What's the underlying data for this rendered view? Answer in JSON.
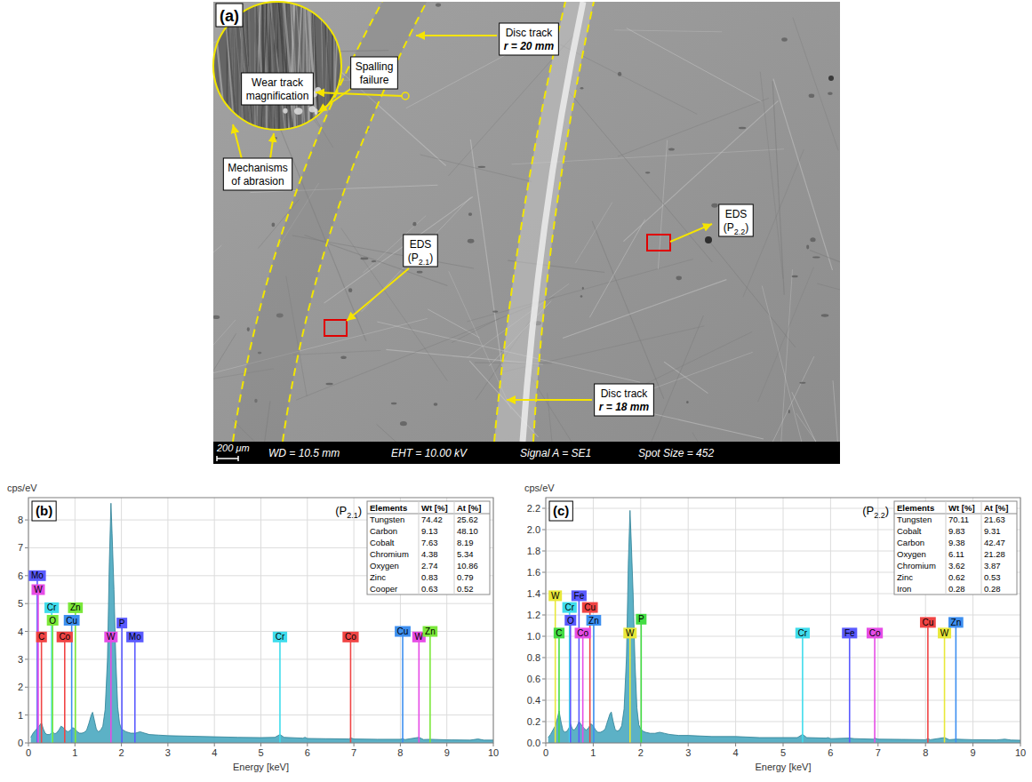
{
  "panel_a": {
    "letter": "(a)",
    "callouts": [
      {
        "lines": [
          [
            {
              "text": "Wear track"
            }
          ],
          [
            {
              "text": "magnification"
            }
          ]
        ]
      },
      {
        "lines": [
          [
            {
              "text": "Spalling"
            }
          ],
          [
            {
              "text": "failure"
            }
          ]
        ]
      },
      {
        "lines": [
          [
            {
              "text": "Mechanisms"
            }
          ],
          [
            {
              "text": "of abrasion"
            }
          ]
        ]
      },
      {
        "lines": [
          [
            {
              "text": "Disc track"
            }
          ],
          [
            {
              "text": "r = 20 mm",
              "emphasis": true
            }
          ]
        ]
      },
      {
        "lines": [
          [
            {
              "text": "EDS"
            }
          ],
          [
            {
              "text": "(P"
            },
            {
              "text": "2.1",
              "sub": true
            },
            {
              "text": ")"
            }
          ]
        ]
      },
      {
        "lines": [
          [
            {
              "text": "EDS"
            }
          ],
          [
            {
              "text": "(P"
            },
            {
              "text": "2.2",
              "sub": true
            },
            {
              "text": ")"
            }
          ]
        ]
      },
      {
        "lines": [
          [
            {
              "text": "Disc track"
            }
          ],
          [
            {
              "text": "r = 18 mm",
              "emphasis": true
            }
          ]
        ]
      }
    ],
    "scale_bar": "200 μm",
    "info": [
      "WD = 10.5 mm",
      "EHT = 10.00 kV",
      "Signal A = SE1",
      "Spot Size = 452"
    ]
  },
  "chart_data": [
    {
      "type": "area",
      "panel": "(b)",
      "y_label": "cps/eV",
      "x_label": "Energy [keV]",
      "point_label": [
        {
          "text": "(P"
        },
        {
          "text": "2.1",
          "sub": true
        },
        {
          "text": ")"
        }
      ],
      "color": "#4aa8c0",
      "grid": true,
      "xlim": [
        0,
        10
      ],
      "xticks": [
        0,
        1,
        2,
        3,
        4,
        5,
        6,
        7,
        8,
        9,
        10
      ],
      "ylim": [
        0,
        8.8
      ],
      "yticks": [
        0,
        1,
        2,
        3,
        4,
        5,
        6,
        7,
        8
      ],
      "x": [
        0.05,
        0.1,
        0.15,
        0.2,
        0.25,
        0.28,
        0.32,
        0.36,
        0.4,
        0.45,
        0.5,
        0.52,
        0.56,
        0.6,
        0.65,
        0.7,
        0.75,
        0.8,
        0.85,
        0.9,
        0.95,
        1.0,
        1.05,
        1.1,
        1.15,
        1.2,
        1.25,
        1.3,
        1.35,
        1.38,
        1.42,
        1.46,
        1.5,
        1.55,
        1.6,
        1.65,
        1.7,
        1.74,
        1.775,
        1.8,
        1.84,
        1.88,
        1.92,
        1.96,
        2.0,
        2.05,
        2.1,
        2.2,
        2.3,
        2.4,
        2.5,
        2.6,
        2.8,
        3.0,
        3.5,
        4.0,
        4.5,
        5.0,
        5.3,
        5.41,
        5.5,
        5.9,
        5.95,
        6.0,
        6.4,
        6.5,
        6.9,
        6.93,
        7.0,
        7.5,
        8.0,
        8.05,
        8.1,
        8.4,
        8.5,
        8.64,
        9.0,
        9.5,
        9.67,
        9.8,
        10.0
      ],
      "values": [
        0.2,
        0.35,
        0.45,
        0.55,
        0.65,
        0.72,
        0.5,
        0.35,
        0.3,
        0.3,
        0.35,
        0.4,
        0.33,
        0.35,
        0.45,
        0.6,
        0.55,
        0.45,
        0.4,
        0.45,
        0.55,
        0.5,
        0.4,
        0.35,
        0.35,
        0.38,
        0.45,
        0.7,
        1.0,
        1.1,
        0.8,
        0.5,
        0.4,
        0.45,
        0.6,
        1.2,
        3.0,
        6.5,
        8.6,
        7.5,
        5.5,
        3.0,
        1.3,
        0.7,
        0.5,
        0.45,
        0.4,
        0.35,
        0.35,
        0.4,
        0.35,
        0.3,
        0.28,
        0.26,
        0.24,
        0.22,
        0.2,
        0.19,
        0.2,
        0.3,
        0.2,
        0.17,
        0.2,
        0.16,
        0.15,
        0.15,
        0.14,
        0.18,
        0.14,
        0.13,
        0.13,
        0.15,
        0.12,
        0.2,
        0.12,
        0.13,
        0.11,
        0.1,
        0.14,
        0.1,
        0.1
      ],
      "element_lines": [
        {
          "label": "Mo",
          "color": "#5a5aff",
          "energy": 0.19,
          "height": 6.0
        },
        {
          "label": "W",
          "color": "#e64ce6",
          "energy": 0.21,
          "height": 5.5
        },
        {
          "label": "Cr",
          "color": "#3fdcec",
          "energy": 0.5,
          "height": 4.85
        },
        {
          "label": "Zn",
          "color": "#7be83a",
          "energy": 1.01,
          "height": 4.85
        },
        {
          "label": "O",
          "color": "#7be83a",
          "energy": 0.52,
          "height": 4.4
        },
        {
          "label": "Cu",
          "color": "#3d8ff0",
          "energy": 0.93,
          "height": 4.4
        },
        {
          "label": "C",
          "color": "#f04444",
          "energy": 0.28,
          "height": 3.8
        },
        {
          "label": "Co",
          "color": "#f04444",
          "energy": 0.78,
          "height": 3.8
        },
        {
          "label": "W",
          "color": "#e64ce6",
          "energy": 1.775,
          "height": 3.8
        },
        {
          "label": "P",
          "color": "#5a5aff",
          "energy": 2.01,
          "height": 4.3
        },
        {
          "label": "Mo",
          "color": "#5a5aff",
          "energy": 2.29,
          "height": 3.8
        },
        {
          "label": "Cr",
          "color": "#3fdcec",
          "energy": 5.41,
          "height": 3.8
        },
        {
          "label": "Co",
          "color": "#f04444",
          "energy": 6.93,
          "height": 3.8
        },
        {
          "label": "Cu",
          "color": "#3d8ff0",
          "energy": 8.05,
          "height": 4.0
        },
        {
          "label": "W",
          "color": "#e64ce6",
          "energy": 8.4,
          "height": 3.8
        },
        {
          "label": "Zn",
          "color": "#7be83a",
          "energy": 8.64,
          "height": 4.0
        }
      ],
      "table": {
        "columns": [
          "Elements",
          "Wt [%]",
          "At [%]"
        ],
        "rows": [
          [
            "Tungsten",
            "74.42",
            "25.62"
          ],
          [
            "Carbon",
            "9.13",
            "48.10"
          ],
          [
            "Cobalt",
            "7.63",
            "8.19"
          ],
          [
            "Chromium",
            "4.38",
            "5.34"
          ],
          [
            "Oxygen",
            "2.74",
            "10.86"
          ],
          [
            "Zinc",
            "0.83",
            "0.79"
          ],
          [
            "Cooper",
            "0.63",
            "0.52"
          ]
        ]
      }
    },
    {
      "type": "area",
      "panel": "(c)",
      "y_label": "cps/eV",
      "x_label": "Energy [keV]",
      "point_label": [
        {
          "text": "(P"
        },
        {
          "text": "2.2",
          "sub": true
        },
        {
          "text": ")"
        }
      ],
      "color": "#4aa8c0",
      "grid": true,
      "xlim": [
        0,
        10
      ],
      "xticks": [
        0,
        1,
        2,
        3,
        4,
        5,
        6,
        7,
        8,
        9,
        10
      ],
      "ylim": [
        0,
        2.3
      ],
      "yticks": [
        {
          "value": 0,
          "label": "0.0"
        },
        0.2,
        0.4,
        0.6,
        0.8,
        {
          "value": 1,
          "label": "1.0"
        },
        1.2,
        1.4,
        1.6,
        1.8,
        {
          "value": 2,
          "label": "2.0"
        },
        2.2
      ],
      "x": [
        0.05,
        0.1,
        0.15,
        0.2,
        0.25,
        0.28,
        0.32,
        0.36,
        0.4,
        0.45,
        0.5,
        0.52,
        0.56,
        0.6,
        0.65,
        0.7,
        0.75,
        0.8,
        0.85,
        0.9,
        0.95,
        1.0,
        1.05,
        1.1,
        1.15,
        1.2,
        1.25,
        1.3,
        1.35,
        1.38,
        1.42,
        1.46,
        1.5,
        1.55,
        1.6,
        1.65,
        1.7,
        1.74,
        1.775,
        1.8,
        1.84,
        1.88,
        1.92,
        1.96,
        2.0,
        2.05,
        2.1,
        2.2,
        2.3,
        2.4,
        2.5,
        2.6,
        2.8,
        3.0,
        3.5,
        4.0,
        4.5,
        5.0,
        5.3,
        5.41,
        5.5,
        5.9,
        5.95,
        6.0,
        6.4,
        6.5,
        6.9,
        6.93,
        7.0,
        7.5,
        8.0,
        8.05,
        8.1,
        8.4,
        8.5,
        8.64,
        9.0,
        9.5,
        9.67,
        9.8,
        10.0
      ],
      "values": [
        0.05,
        0.08,
        0.12,
        0.16,
        0.24,
        0.3,
        0.2,
        0.12,
        0.1,
        0.11,
        0.15,
        0.18,
        0.13,
        0.12,
        0.15,
        0.2,
        0.17,
        0.14,
        0.12,
        0.14,
        0.18,
        0.16,
        0.12,
        0.1,
        0.1,
        0.11,
        0.13,
        0.2,
        0.27,
        0.29,
        0.2,
        0.13,
        0.11,
        0.12,
        0.16,
        0.32,
        0.8,
        1.7,
        2.18,
        1.9,
        1.4,
        0.75,
        0.33,
        0.17,
        0.13,
        0.11,
        0.1,
        0.09,
        0.09,
        0.1,
        0.09,
        0.08,
        0.07,
        0.07,
        0.06,
        0.06,
        0.05,
        0.05,
        0.05,
        0.08,
        0.05,
        0.045,
        0.05,
        0.04,
        0.045,
        0.04,
        0.035,
        0.045,
        0.035,
        0.033,
        0.03,
        0.04,
        0.03,
        0.05,
        0.03,
        0.035,
        0.03,
        0.028,
        0.035,
        0.027,
        0.025
      ],
      "element_lines": [
        {
          "label": "W",
          "color": "#e8e83a",
          "energy": 0.2,
          "height": 1.38
        },
        {
          "label": "Fe",
          "color": "#5a5aff",
          "energy": 0.7,
          "height": 1.38
        },
        {
          "label": "Cr",
          "color": "#3fdcec",
          "energy": 0.5,
          "height": 1.27
        },
        {
          "label": "Cu",
          "color": "#f04444",
          "energy": 0.93,
          "height": 1.27
        },
        {
          "label": "O",
          "color": "#5a5aff",
          "energy": 0.52,
          "height": 1.15
        },
        {
          "label": "Zn",
          "color": "#3d8ff0",
          "energy": 1.01,
          "height": 1.15
        },
        {
          "label": "C",
          "color": "#44dd44",
          "energy": 0.28,
          "height": 1.03
        },
        {
          "label": "Co",
          "color": "#e64ce6",
          "energy": 0.78,
          "height": 1.03
        },
        {
          "label": "W",
          "color": "#e8e83a",
          "energy": 1.775,
          "height": 1.03
        },
        {
          "label": "P",
          "color": "#44dd44",
          "energy": 2.01,
          "height": 1.16
        },
        {
          "label": "Cr",
          "color": "#3fdcec",
          "energy": 5.41,
          "height": 1.03
        },
        {
          "label": "Fe",
          "color": "#5a5aff",
          "energy": 6.4,
          "height": 1.03
        },
        {
          "label": "Co",
          "color": "#e64ce6",
          "energy": 6.93,
          "height": 1.03
        },
        {
          "label": "Cu",
          "color": "#f04444",
          "energy": 8.05,
          "height": 1.13
        },
        {
          "label": "W",
          "color": "#e8e83a",
          "energy": 8.4,
          "height": 1.03
        },
        {
          "label": "Zn",
          "color": "#3d8ff0",
          "energy": 8.64,
          "height": 1.13
        }
      ],
      "table": {
        "columns": [
          "Elements",
          "Wt [%]",
          "At [%]"
        ],
        "rows": [
          [
            "Tungsten",
            "70.11",
            "21.63"
          ],
          [
            "Cobalt",
            "9.83",
            "9.31"
          ],
          [
            "Carbon",
            "9.38",
            "42.47"
          ],
          [
            "Oxygen",
            "6.11",
            "21.28"
          ],
          [
            "Chromium",
            "3.62",
            "3.87"
          ],
          [
            "Zinc",
            "0.62",
            "0.53"
          ],
          [
            "Iron",
            "0.28",
            "0.28"
          ]
        ]
      }
    }
  ]
}
